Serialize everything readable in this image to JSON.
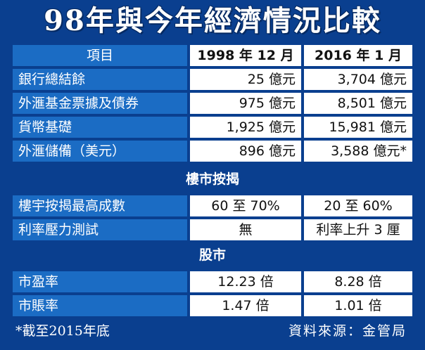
{
  "title": "98年與今年經濟情況比較",
  "header": {
    "item": "項目",
    "col1": "1998 年 12 月",
    "col2": "2016 年 1 月"
  },
  "economy_rows": [
    {
      "label": "銀行總結餘",
      "v1998": "25 億元",
      "v2016": "3,704 億元"
    },
    {
      "label": "外滙基金票據及債券",
      "v1998": "975 億元",
      "v2016": "8,501 億元"
    },
    {
      "label": "貨幣基礎",
      "v1998": "1,925 億元",
      "v2016": "15,981 億元"
    },
    {
      "label": "外滙儲備（美元）",
      "v1998": "896 億元",
      "v2016": "3,588 億元*"
    }
  ],
  "property_section": {
    "title": "樓市按揭",
    "rows": [
      {
        "label": "樓宇按揭最高成數",
        "v1998": "60 至 70%",
        "v2016": "20 至 60%"
      },
      {
        "label": "利率壓力測試",
        "v1998": "無",
        "v2016": "利率上升 3 厘"
      }
    ]
  },
  "stock_section": {
    "title": "股市",
    "rows": [
      {
        "label": "市盈率",
        "v1998": "12.23 倍",
        "v2016": "8.28 倍"
      },
      {
        "label": "市賬率",
        "v1998": "1.47 倍",
        "v2016": "1.01 倍"
      }
    ]
  },
  "footnote": "*截至2015年底",
  "source": "資料來源：金管局",
  "colors": {
    "background": "#0a3f8f",
    "label_cell": "#1b6cc4",
    "value_cell": "#ffffff"
  }
}
